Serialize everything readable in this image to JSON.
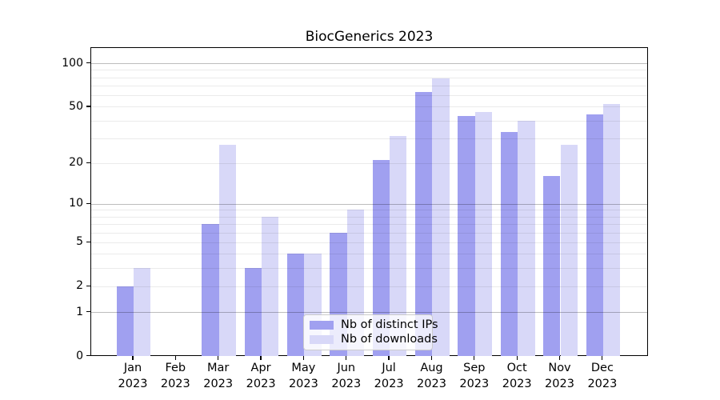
{
  "chart_data": {
    "type": "bar",
    "title": "BiocGenerics 2023",
    "categories": [
      "Jan 2023",
      "Feb 2023",
      "Mar 2023",
      "Apr 2023",
      "May 2023",
      "Jun 2023",
      "Jul 2023",
      "Aug 2023",
      "Sep 2023",
      "Oct 2023",
      "Nov 2023",
      "Dec 2023"
    ],
    "month_labels": [
      "Jan",
      "Feb",
      "Mar",
      "Apr",
      "May",
      "Jun",
      "Jul",
      "Aug",
      "Sep",
      "Oct",
      "Nov",
      "Dec"
    ],
    "year_label": "2023",
    "series": [
      {
        "name": "Nb of distinct IPs",
        "color": "#a0a0f0",
        "values": [
          2,
          0,
          7,
          3,
          4,
          6,
          21,
          63,
          43,
          33,
          16,
          44
        ]
      },
      {
        "name": "Nb of downloads",
        "color": "#d8d8f8",
        "values": [
          3,
          0,
          27,
          8,
          4,
          9,
          31,
          79,
          46,
          40,
          27,
          52
        ]
      }
    ],
    "xlabel": "",
    "ylabel": "",
    "yscale": "log1p",
    "ylim": [
      0,
      122
    ],
    "yticks": [
      0,
      1,
      2,
      5,
      10,
      20,
      50,
      100
    ],
    "decade_gridlines": [
      1,
      10,
      100
    ],
    "minor_gridlines": [
      2,
      3,
      4,
      5,
      6,
      7,
      8,
      9,
      20,
      30,
      40,
      50,
      60,
      70,
      80,
      90
    ],
    "grid": true,
    "legend": {
      "position": "lower center",
      "entries": [
        "Nb of distinct IPs",
        "Nb of downloads"
      ]
    }
  },
  "colors": {
    "bar_distinct_ips": "#a0a0f0",
    "bar_downloads": "#d8d8f8",
    "grid_minor": "#ebebeb",
    "grid_decade": "#bdbdbd",
    "axis": "#000000",
    "legend_border": "#cccccc",
    "background": "#ffffff"
  }
}
